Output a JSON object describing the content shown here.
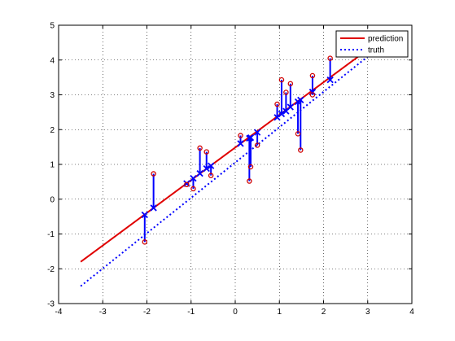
{
  "chart_data": {
    "type": "scatter",
    "title": "",
    "xlabel": "",
    "ylabel": "",
    "xlim": [
      -4,
      4
    ],
    "ylim": [
      -3,
      5
    ],
    "xticks": [
      -4,
      -3,
      -2,
      -1,
      0,
      1,
      2,
      3,
      4
    ],
    "yticks": [
      -3,
      -2,
      -1,
      0,
      1,
      2,
      3,
      4,
      5
    ],
    "grid": true,
    "legend": {
      "placement": "top-right",
      "entries": [
        "prediction",
        "truth"
      ]
    },
    "colors": {
      "prediction": "#e00000",
      "truth": "#0000ff",
      "observed": "#d00000",
      "residual": "#0000ff"
    },
    "series": [
      {
        "name": "prediction",
        "style": "solid",
        "points": [
          [
            -3.5,
            -1.8
          ],
          [
            3.0,
            4.3
          ]
        ]
      },
      {
        "name": "truth",
        "style": "dotted",
        "points": [
          [
            -3.5,
            -2.5
          ],
          [
            3.0,
            4.1
          ]
        ]
      }
    ],
    "observations": [
      {
        "x": -2.05,
        "observed": -1.23,
        "predicted": -0.45
      },
      {
        "x": -1.85,
        "observed": 0.73,
        "predicted": -0.25
      },
      {
        "x": -1.1,
        "observed": 0.42,
        "predicted": 0.45
      },
      {
        "x": -0.95,
        "observed": 0.3,
        "predicted": 0.6
      },
      {
        "x": -0.8,
        "observed": 1.47,
        "predicted": 0.74
      },
      {
        "x": -0.65,
        "observed": 1.36,
        "predicted": 0.88
      },
      {
        "x": -0.55,
        "observed": 0.68,
        "predicted": 0.96
      },
      {
        "x": 0.12,
        "observed": 1.83,
        "predicted": 1.6
      },
      {
        "x": 0.32,
        "observed": 0.52,
        "predicted": 1.75
      },
      {
        "x": 0.35,
        "observed": 0.93,
        "predicted": 1.77
      },
      {
        "x": 0.5,
        "observed": 1.55,
        "predicted": 1.92
      },
      {
        "x": 0.95,
        "observed": 2.73,
        "predicted": 2.35
      },
      {
        "x": 1.05,
        "observed": 3.43,
        "predicted": 2.45
      },
      {
        "x": 1.15,
        "observed": 3.07,
        "predicted": 2.53
      },
      {
        "x": 1.25,
        "observed": 3.32,
        "predicted": 2.65
      },
      {
        "x": 1.42,
        "observed": 1.88,
        "predicted": 2.8
      },
      {
        "x": 1.48,
        "observed": 1.41,
        "predicted": 2.85
      },
      {
        "x": 1.75,
        "observed": 3.55,
        "predicted": 3.08
      },
      {
        "x": 1.75,
        "observed": 3.0,
        "predicted": 3.08
      },
      {
        "x": 2.15,
        "observed": 4.05,
        "predicted": 3.43
      }
    ]
  }
}
